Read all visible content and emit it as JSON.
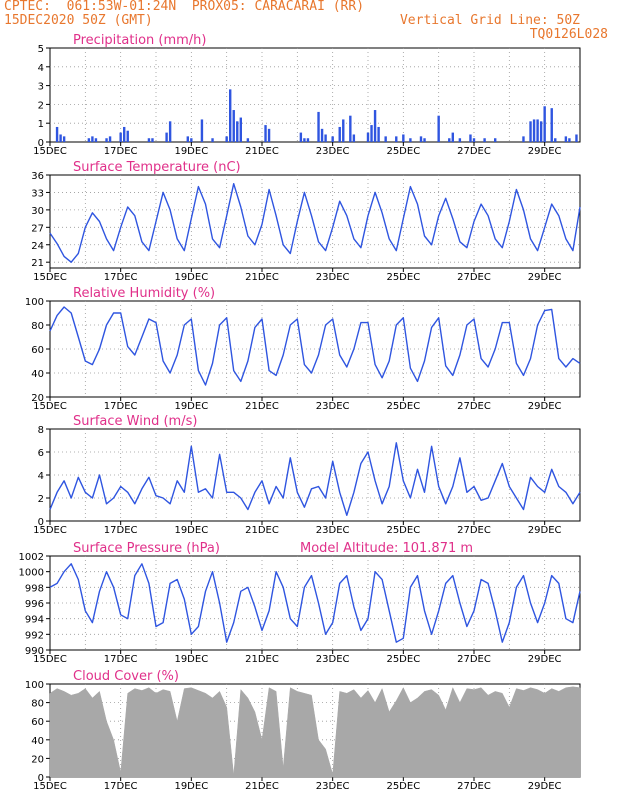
{
  "header": {
    "line1": "CPTEC:  061:53W-01:24N  PROX05: CARACARAI (RR)",
    "line2": "15DEC2020 50Z (GMT)",
    "grid_note": "Vertical Grid Line: 50Z",
    "code": "TQ0126L028"
  },
  "colors": {
    "title": "#e0308a",
    "line": "#2f55e0",
    "bars": "#2f55e0",
    "cloud": "#a8a8a8",
    "header": "#e8772e"
  },
  "x_axis": {
    "start_day": 15,
    "end_day": 30,
    "tick_labels": [
      "15DEC",
      "17DEC",
      "19DEC",
      "21DEC",
      "23DEC",
      "25DEC",
      "27DEC",
      "29DEC"
    ],
    "tick_days": [
      15,
      17,
      19,
      21,
      23,
      25,
      27,
      29
    ]
  },
  "chart_data": [
    {
      "id": "precip",
      "type": "bar",
      "title": "Precipitation (mm/h)",
      "ylim": [
        0,
        5
      ],
      "yticks": [
        0,
        1,
        2,
        3,
        4,
        5
      ],
      "x": [
        15.2,
        15.3,
        15.4,
        16.1,
        16.2,
        16.3,
        16.6,
        16.7,
        17.0,
        17.1,
        17.2,
        17.8,
        17.9,
        18.3,
        18.4,
        18.9,
        19.0,
        19.3,
        19.6,
        20.0,
        20.1,
        20.2,
        20.3,
        20.4,
        20.6,
        21.1,
        21.2,
        22.1,
        22.2,
        22.3,
        22.6,
        22.7,
        22.8,
        23.0,
        23.2,
        23.3,
        23.5,
        23.6,
        24.0,
        24.1,
        24.2,
        24.3,
        24.5,
        24.8,
        25.0,
        25.2,
        25.5,
        25.6,
        26.0,
        26.3,
        26.4,
        26.6,
        26.9,
        27.0,
        27.3,
        27.6,
        28.4,
        28.6,
        28.7,
        28.8,
        28.9,
        29.0,
        29.2,
        29.3,
        29.6,
        29.7,
        29.9
      ],
      "values": [
        0.8,
        0.4,
        0.3,
        0.2,
        0.3,
        0.2,
        0.2,
        0.3,
        0.5,
        0.8,
        0.6,
        0.2,
        0.2,
        0.5,
        1.1,
        0.3,
        0.2,
        1.2,
        0.2,
        0.3,
        2.8,
        1.7,
        1.1,
        1.3,
        0.2,
        0.9,
        0.7,
        0.5,
        0.2,
        0.2,
        1.6,
        0.7,
        0.4,
        0.3,
        0.8,
        1.2,
        1.4,
        0.4,
        0.5,
        0.9,
        1.7,
        0.8,
        0.3,
        0.3,
        0.4,
        0.2,
        0.3,
        0.2,
        1.4,
        0.2,
        0.5,
        0.2,
        0.4,
        0.2,
        0.2,
        0.2,
        0.3,
        1.1,
        1.2,
        1.2,
        1.1,
        1.9,
        1.8,
        0.2,
        0.3,
        0.2,
        0.4
      ]
    },
    {
      "id": "temp",
      "type": "line",
      "title": "Surface Temperature (nC)",
      "ylim": [
        20,
        36
      ],
      "yticks": [
        21,
        24,
        27,
        30,
        33,
        36
      ],
      "x": [
        15.0,
        15.2,
        15.4,
        15.6,
        15.8,
        16.0,
        16.2,
        16.4,
        16.6,
        16.8,
        17.0,
        17.2,
        17.4,
        17.6,
        17.8,
        18.0,
        18.2,
        18.4,
        18.6,
        18.8,
        19.0,
        19.2,
        19.4,
        19.6,
        19.8,
        20.0,
        20.2,
        20.4,
        20.6,
        20.8,
        21.0,
        21.2,
        21.4,
        21.6,
        21.8,
        22.0,
        22.2,
        22.4,
        22.6,
        22.8,
        23.0,
        23.2,
        23.4,
        23.6,
        23.8,
        24.0,
        24.2,
        24.4,
        24.6,
        24.8,
        25.0,
        25.2,
        25.4,
        25.6,
        25.8,
        26.0,
        26.2,
        26.4,
        26.6,
        26.8,
        27.0,
        27.2,
        27.4,
        27.6,
        27.8,
        28.0,
        28.2,
        28.4,
        28.6,
        28.8,
        29.0,
        29.2,
        29.4,
        29.6,
        29.8,
        30.0
      ],
      "values": [
        26.0,
        24.2,
        22.0,
        21.0,
        22.5,
        27.0,
        29.5,
        28.0,
        25.0,
        23.0,
        27.0,
        30.5,
        29.0,
        24.5,
        23.0,
        28.0,
        33.0,
        30.0,
        25.0,
        23.0,
        28.5,
        34.0,
        31.0,
        25.0,
        23.5,
        29.0,
        34.5,
        30.5,
        25.5,
        24.0,
        27.5,
        33.5,
        29.0,
        24.0,
        22.5,
        28.0,
        33.0,
        29.0,
        24.5,
        23.0,
        27.0,
        31.5,
        29.0,
        25.0,
        23.5,
        29.0,
        33.0,
        29.5,
        25.0,
        23.0,
        28.5,
        34.0,
        31.0,
        25.5,
        24.0,
        29.0,
        32.0,
        28.5,
        24.5,
        23.5,
        28.0,
        31.0,
        29.0,
        25.0,
        23.5,
        28.0,
        33.5,
        30.0,
        25.0,
        23.0,
        27.0,
        31.0,
        29.0,
        25.0,
        23.0,
        30.5
      ]
    },
    {
      "id": "rh",
      "type": "line",
      "title": "Relative Humidity (%)",
      "ylim": [
        20,
        100
      ],
      "yticks": [
        20,
        40,
        60,
        80,
        100
      ],
      "x": [
        15.0,
        15.2,
        15.4,
        15.6,
        15.8,
        16.0,
        16.2,
        16.4,
        16.6,
        16.8,
        17.0,
        17.2,
        17.4,
        17.6,
        17.8,
        18.0,
        18.2,
        18.4,
        18.6,
        18.8,
        19.0,
        19.2,
        19.4,
        19.6,
        19.8,
        20.0,
        20.2,
        20.4,
        20.6,
        20.8,
        21.0,
        21.2,
        21.4,
        21.6,
        21.8,
        22.0,
        22.2,
        22.4,
        22.6,
        22.8,
        23.0,
        23.2,
        23.4,
        23.6,
        23.8,
        24.0,
        24.2,
        24.4,
        24.6,
        24.8,
        25.0,
        25.2,
        25.4,
        25.6,
        25.8,
        26.0,
        26.2,
        26.4,
        26.6,
        26.8,
        27.0,
        27.2,
        27.4,
        27.6,
        27.8,
        28.0,
        28.2,
        28.4,
        28.6,
        28.8,
        29.0,
        29.2,
        29.4,
        29.6,
        29.8,
        30.0
      ],
      "values": [
        75,
        88,
        95,
        90,
        70,
        50,
        47,
        60,
        80,
        90,
        90,
        62,
        55,
        70,
        85,
        82,
        50,
        40,
        55,
        80,
        85,
        42,
        30,
        48,
        80,
        86,
        42,
        33,
        50,
        78,
        85,
        42,
        38,
        55,
        80,
        85,
        47,
        40,
        55,
        80,
        85,
        55,
        45,
        60,
        82,
        82,
        47,
        36,
        50,
        80,
        86,
        44,
        33,
        50,
        78,
        86,
        46,
        38,
        55,
        80,
        85,
        52,
        45,
        60,
        82,
        82,
        48,
        38,
        52,
        80,
        92,
        93,
        52,
        45,
        52,
        48
      ]
    },
    {
      "id": "wind",
      "type": "line",
      "title": "Surface Wind (m/s)",
      "ylim": [
        0,
        8
      ],
      "yticks": [
        0,
        2,
        4,
        6,
        8
      ],
      "x": [
        15.0,
        15.2,
        15.4,
        15.6,
        15.8,
        16.0,
        16.2,
        16.4,
        16.6,
        16.8,
        17.0,
        17.2,
        17.4,
        17.6,
        17.8,
        18.0,
        18.2,
        18.4,
        18.6,
        18.8,
        19.0,
        19.2,
        19.4,
        19.6,
        19.8,
        20.0,
        20.2,
        20.4,
        20.6,
        20.8,
        21.0,
        21.2,
        21.4,
        21.6,
        21.8,
        22.0,
        22.2,
        22.4,
        22.6,
        22.8,
        23.0,
        23.2,
        23.4,
        23.6,
        23.8,
        24.0,
        24.2,
        24.4,
        24.6,
        24.8,
        25.0,
        25.2,
        25.4,
        25.6,
        25.8,
        26.0,
        26.2,
        26.4,
        26.6,
        26.8,
        27.0,
        27.2,
        27.4,
        27.6,
        27.8,
        28.0,
        28.2,
        28.4,
        28.6,
        28.8,
        29.0,
        29.2,
        29.4,
        29.6,
        29.8,
        30.0
      ],
      "values": [
        1.0,
        2.5,
        3.5,
        2.0,
        3.8,
        2.5,
        2.0,
        4.0,
        1.5,
        2.0,
        3.0,
        2.5,
        1.5,
        2.8,
        3.8,
        2.2,
        2.0,
        1.5,
        3.5,
        2.5,
        6.5,
        2.5,
        2.8,
        2.0,
        5.8,
        2.5,
        2.5,
        2.0,
        1.0,
        2.5,
        3.5,
        1.5,
        3.0,
        2.0,
        5.5,
        2.5,
        1.2,
        2.8,
        3.0,
        2.0,
        5.2,
        2.5,
        0.5,
        2.5,
        5.0,
        6.0,
        3.5,
        1.5,
        3.0,
        6.8,
        3.5,
        2.0,
        4.5,
        2.5,
        6.5,
        3.0,
        1.5,
        3.0,
        5.5,
        2.5,
        3.0,
        1.8,
        2.0,
        3.5,
        5.0,
        3.0,
        2.0,
        1.0,
        3.8,
        3.0,
        2.5,
        4.5,
        3.0,
        2.5,
        1.5,
        2.5
      ]
    },
    {
      "id": "pres",
      "type": "line",
      "title": "Surface Pressure (hPa)",
      "annotation": "Model Altitude: 101.871 m",
      "ylim": [
        990,
        1002
      ],
      "yticks": [
        990,
        992,
        994,
        996,
        998,
        1000,
        1002
      ],
      "x": [
        15.0,
        15.2,
        15.4,
        15.6,
        15.8,
        16.0,
        16.2,
        16.4,
        16.6,
        16.8,
        17.0,
        17.2,
        17.4,
        17.6,
        17.8,
        18.0,
        18.2,
        18.4,
        18.6,
        18.8,
        19.0,
        19.2,
        19.4,
        19.6,
        19.8,
        20.0,
        20.2,
        20.4,
        20.6,
        20.8,
        21.0,
        21.2,
        21.4,
        21.6,
        21.8,
        22.0,
        22.2,
        22.4,
        22.6,
        22.8,
        23.0,
        23.2,
        23.4,
        23.6,
        23.8,
        24.0,
        24.2,
        24.4,
        24.6,
        24.8,
        25.0,
        25.2,
        25.4,
        25.6,
        25.8,
        26.0,
        26.2,
        26.4,
        26.6,
        26.8,
        27.0,
        27.2,
        27.4,
        27.6,
        27.8,
        28.0,
        28.2,
        28.4,
        28.6,
        28.8,
        29.0,
        29.2,
        29.4,
        29.6,
        29.8,
        30.0
      ],
      "values": [
        998.0,
        998.5,
        1000.0,
        1001.0,
        999.0,
        995.0,
        993.5,
        997.5,
        1000.0,
        998.0,
        994.5,
        994.0,
        999.5,
        1001.0,
        998.5,
        993.0,
        993.5,
        998.5,
        999.0,
        996.5,
        992.0,
        993.0,
        997.5,
        1000.0,
        996.0,
        991.0,
        993.5,
        997.5,
        998.0,
        995.5,
        992.5,
        995.0,
        1000.0,
        998.0,
        994.0,
        993.0,
        998.0,
        999.5,
        996.0,
        992.0,
        993.5,
        998.5,
        999.5,
        995.5,
        992.5,
        994.0,
        1000.0,
        999.0,
        995.0,
        991.0,
        991.5,
        998.0,
        999.5,
        995.0,
        992.0,
        995.0,
        998.5,
        999.5,
        996.0,
        993.0,
        995.0,
        999.0,
        998.5,
        995.0,
        991.0,
        993.5,
        998.0,
        999.5,
        996.0,
        993.5,
        996.0,
        999.5,
        998.5,
        994.0,
        993.5,
        997.5
      ]
    },
    {
      "id": "cloud",
      "type": "area",
      "title": "Cloud Cover (%)",
      "ylim": [
        0,
        100
      ],
      "yticks": [
        0,
        20,
        40,
        60,
        80,
        100
      ],
      "x": [
        15.0,
        15.2,
        15.4,
        15.6,
        15.8,
        16.0,
        16.2,
        16.4,
        16.6,
        16.8,
        17.0,
        17.2,
        17.4,
        17.6,
        17.8,
        18.0,
        18.2,
        18.4,
        18.6,
        18.8,
        19.0,
        19.2,
        19.4,
        19.6,
        19.8,
        20.0,
        20.2,
        20.4,
        20.6,
        20.8,
        21.0,
        21.2,
        21.4,
        21.6,
        21.8,
        22.0,
        22.2,
        22.4,
        22.6,
        22.8,
        23.0,
        23.2,
        23.4,
        23.6,
        23.8,
        24.0,
        24.2,
        24.4,
        24.6,
        24.8,
        25.0,
        25.2,
        25.4,
        25.6,
        25.8,
        26.0,
        26.2,
        26.4,
        26.6,
        26.8,
        27.0,
        27.2,
        27.4,
        27.6,
        27.8,
        28.0,
        28.2,
        28.4,
        28.6,
        28.8,
        29.0,
        29.2,
        29.4,
        29.6,
        29.8,
        30.0
      ],
      "values": [
        90,
        95,
        92,
        88,
        90,
        95,
        85,
        92,
        60,
        40,
        5,
        90,
        95,
        93,
        96,
        90,
        94,
        92,
        60,
        95,
        96,
        93,
        90,
        85,
        92,
        75,
        2,
        94,
        85,
        70,
        40,
        96,
        92,
        10,
        96,
        92,
        90,
        88,
        40,
        30,
        3,
        92,
        90,
        94,
        85,
        93,
        80,
        95,
        70,
        82,
        96,
        80,
        85,
        92,
        94,
        88,
        72,
        96,
        80,
        95,
        94,
        96,
        88,
        92,
        90,
        75,
        95,
        93,
        96,
        94,
        90,
        95,
        92,
        96,
        97,
        96
      ]
    }
  ]
}
